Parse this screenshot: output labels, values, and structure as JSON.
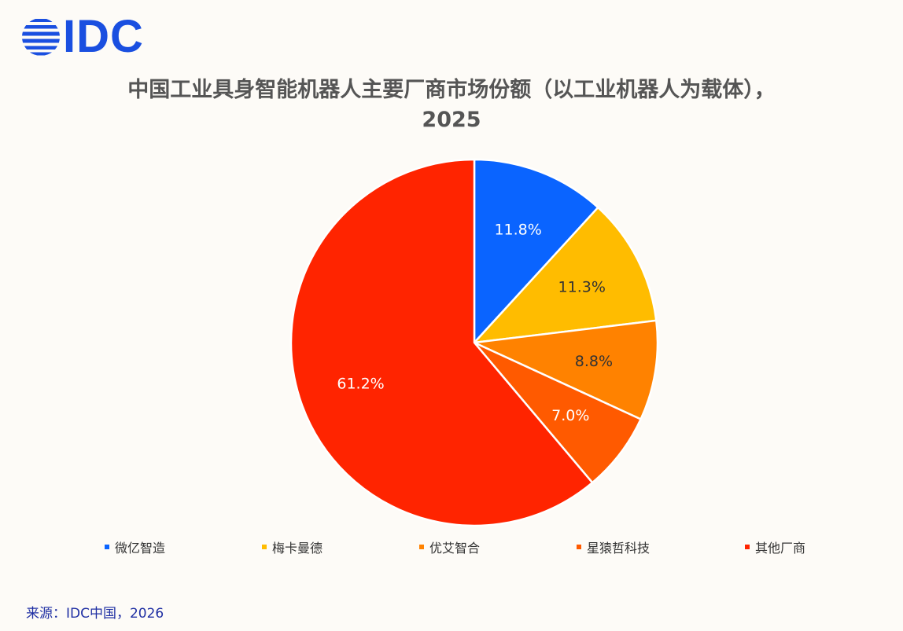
{
  "logo": {
    "text": "IDC"
  },
  "title": {
    "line1": "中国工业具身智能机器人主要厂商市场份额（以工业机器人为载体），",
    "line2": "2025"
  },
  "source": "来源：IDC中国，2026",
  "chart_data": {
    "type": "pie",
    "title": "中国工业具身智能机器人主要厂商市场份额（以工业机器人为载体），2025",
    "categories": [
      "微亿智造",
      "梅卡曼德",
      "优艾智合",
      "星猿哲科技",
      "其他厂商"
    ],
    "values": [
      11.8,
      11.3,
      8.8,
      7.0,
      61.2
    ],
    "labels": [
      "11.8%",
      "11.3%",
      "8.8%",
      "7.0%",
      "61.2%"
    ],
    "colors": [
      "#0a64ff",
      "#ffbc00",
      "#ff8200",
      "#ff5a00",
      "#ff2400"
    ],
    "label_colors": [
      "#ffffff",
      "#333333",
      "#333333",
      "#ffffff",
      "#ffffff"
    ],
    "legend_position": "bottom"
  }
}
